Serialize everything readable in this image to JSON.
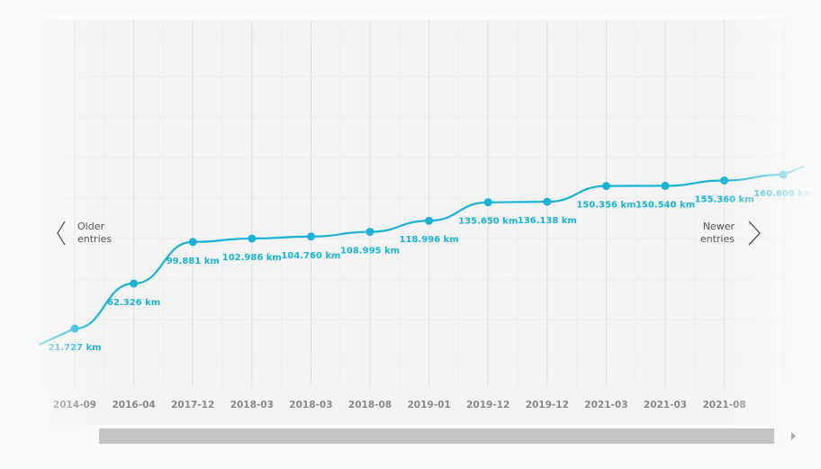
{
  "chart_data": {
    "type": "line",
    "color": "#1ab3d6",
    "categories": [
      "2014-09",
      "2016-04",
      "2017-12",
      "2018-03",
      "2018-03",
      "2018-08",
      "2019-01",
      "2019-12",
      "2019-12",
      "2021-03",
      "2021-03",
      "2021-08",
      null
    ],
    "values": [
      21727,
      62326,
      99881,
      102986,
      104760,
      108995,
      118996,
      135650,
      136138,
      150356,
      150540,
      155360,
      160609
    ],
    "value_labels": [
      "21.727 km",
      "62.326 km",
      "99.881 km",
      "102.986 km",
      "104.760 km",
      "108.995 km",
      "118.996 km",
      "135.650 km",
      "136.138 km",
      "150.356 km",
      "150.540 km",
      "155.360 km",
      "160.609 km"
    ]
  },
  "nav": {
    "older": [
      "Older",
      "entries"
    ],
    "newer": [
      "Newer",
      "entries"
    ]
  }
}
